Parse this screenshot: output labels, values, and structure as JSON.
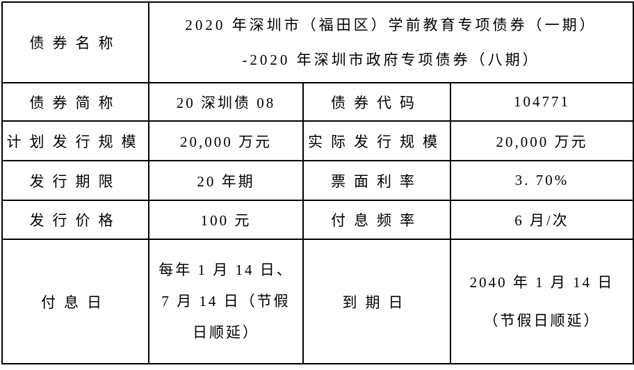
{
  "table": {
    "bond_name": {
      "label": "债券名称",
      "value_lines": [
        "2020 年深圳市（福田区）学前教育专项债券（一期）",
        "-2020 年深圳市政府专项债券（八期）"
      ]
    },
    "bond_abbr": {
      "label": "债券简称",
      "value": "20 深圳债 08"
    },
    "bond_code": {
      "label": "债券代码",
      "value": "104771"
    },
    "planned_size": {
      "label": "计划发行规模",
      "value": "20,000 万元"
    },
    "actual_size": {
      "label": "实际发行规模",
      "value": "20,000 万元"
    },
    "term": {
      "label": "发行期限",
      "value": "20 年期"
    },
    "coupon_rate": {
      "label": "票面利率",
      "value": "3. 70%"
    },
    "issue_price": {
      "label": "发行价格",
      "value": "100 元"
    },
    "interest_frequency": {
      "label": "付息频率",
      "value": "6 月/次"
    },
    "interest_payment_date": {
      "label": "付息日",
      "value_lines": [
        "每年 1 月 14 日、",
        "7 月 14 日（节假",
        "日顺延）"
      ]
    },
    "maturity_date": {
      "label": "到期日",
      "value_lines": [
        "2040 年 1 月 14 日",
        "（节假日顺延）"
      ]
    }
  },
  "colors": {
    "border": "#000000",
    "background": "#ffffff",
    "text": "#000000"
  }
}
